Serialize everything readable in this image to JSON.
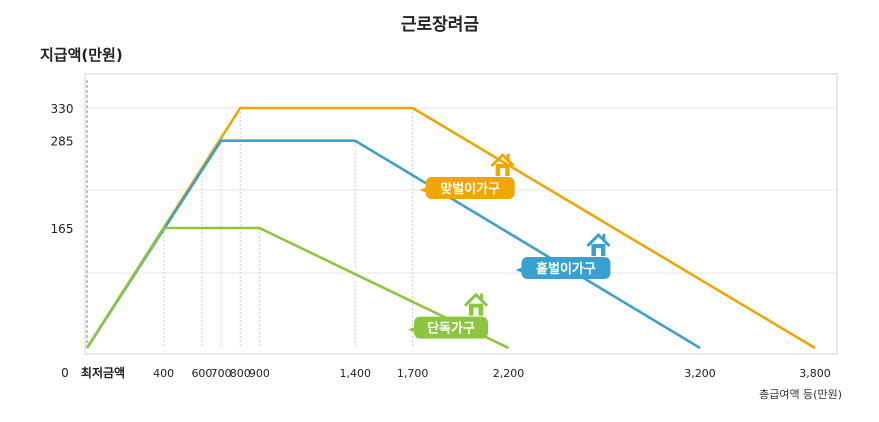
{
  "chart_data": {
    "type": "line",
    "title": "근로장려금",
    "ylabel": "지급액(만원)",
    "xlabel": "총급여액 등(만원)",
    "origin_label": "0",
    "min_wage_label": "최저금액",
    "x_ticks": [
      "400",
      "600",
      "700",
      "800",
      "900",
      "1,400",
      "1,700",
      "2,200",
      "3,200",
      "3,800"
    ],
    "x_tick_values": [
      400,
      600,
      700,
      800,
      900,
      1400,
      1700,
      2200,
      3200,
      3800
    ],
    "y_ticks": [
      "330",
      "285",
      "165"
    ],
    "y_tick_values": [
      330,
      285,
      165
    ],
    "xlim": [
      0,
      3800
    ],
    "ylim": [
      0,
      330
    ],
    "grid": true,
    "series": [
      {
        "name": "맞벌이가구",
        "color": "#f0a500",
        "x": [
          0,
          800,
          1700,
          3800
        ],
        "values": [
          0,
          330,
          330,
          0
        ]
      },
      {
        "name": "홑벌이가구",
        "color": "#3aa0d0",
        "x": [
          0,
          700,
          1400,
          3200
        ],
        "values": [
          0,
          285,
          285,
          0
        ]
      },
      {
        "name": "단독가구",
        "color": "#8cc63f",
        "x": [
          0,
          400,
          900,
          2200
        ],
        "values": [
          0,
          165,
          165,
          0
        ]
      }
    ]
  }
}
